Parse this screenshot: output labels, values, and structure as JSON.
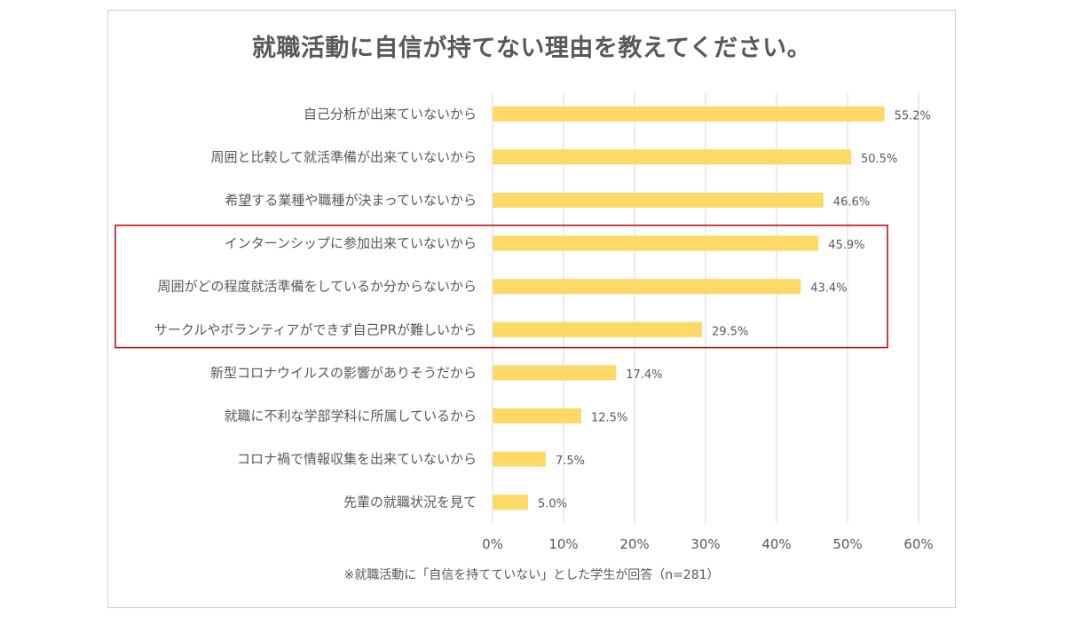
{
  "chart_data": {
    "type": "bar",
    "orientation": "horizontal",
    "title": "就職活動に自信が持てない理由を教えてください。",
    "categories": [
      "自己分析が出来ていないから",
      "周囲と比較して就活準備が出来ていないから",
      "希望する業種や職種が決まっていないから",
      "インターンシップに参加出来ていないから",
      "周囲がどの程度就活準備をしているか分からないから",
      "サークルやボランティアができず自己PRが難しいから",
      "新型コロナウイルスの影響がありそうだから",
      "就職に不利な学部学科に所属しているから",
      "コロナ禍で情報収集を出来ていないから",
      "先輩の就職状況を見て"
    ],
    "values": [
      55.2,
      50.5,
      46.6,
      45.9,
      43.4,
      29.5,
      17.4,
      12.5,
      7.5,
      5.0
    ],
    "data_labels": [
      "55.2%",
      "50.5%",
      "46.6%",
      "45.9%",
      "43.4%",
      "29.5%",
      "17.4%",
      "12.5%",
      "7.5%",
      "5.0%"
    ],
    "xlim": [
      0,
      60
    ],
    "xticks": [
      "0%",
      "10%",
      "20%",
      "30%",
      "40%",
      "50%",
      "60%"
    ],
    "grid": true,
    "bar_color": "#ffd966",
    "grid_color": "#d9d9d9",
    "highlight_box_color": "#c00000",
    "highlight_categories": [
      3,
      4,
      5
    ],
    "footnote": "※就職活動に「自信を持てていない」とした学生が回答（n=281）"
  }
}
